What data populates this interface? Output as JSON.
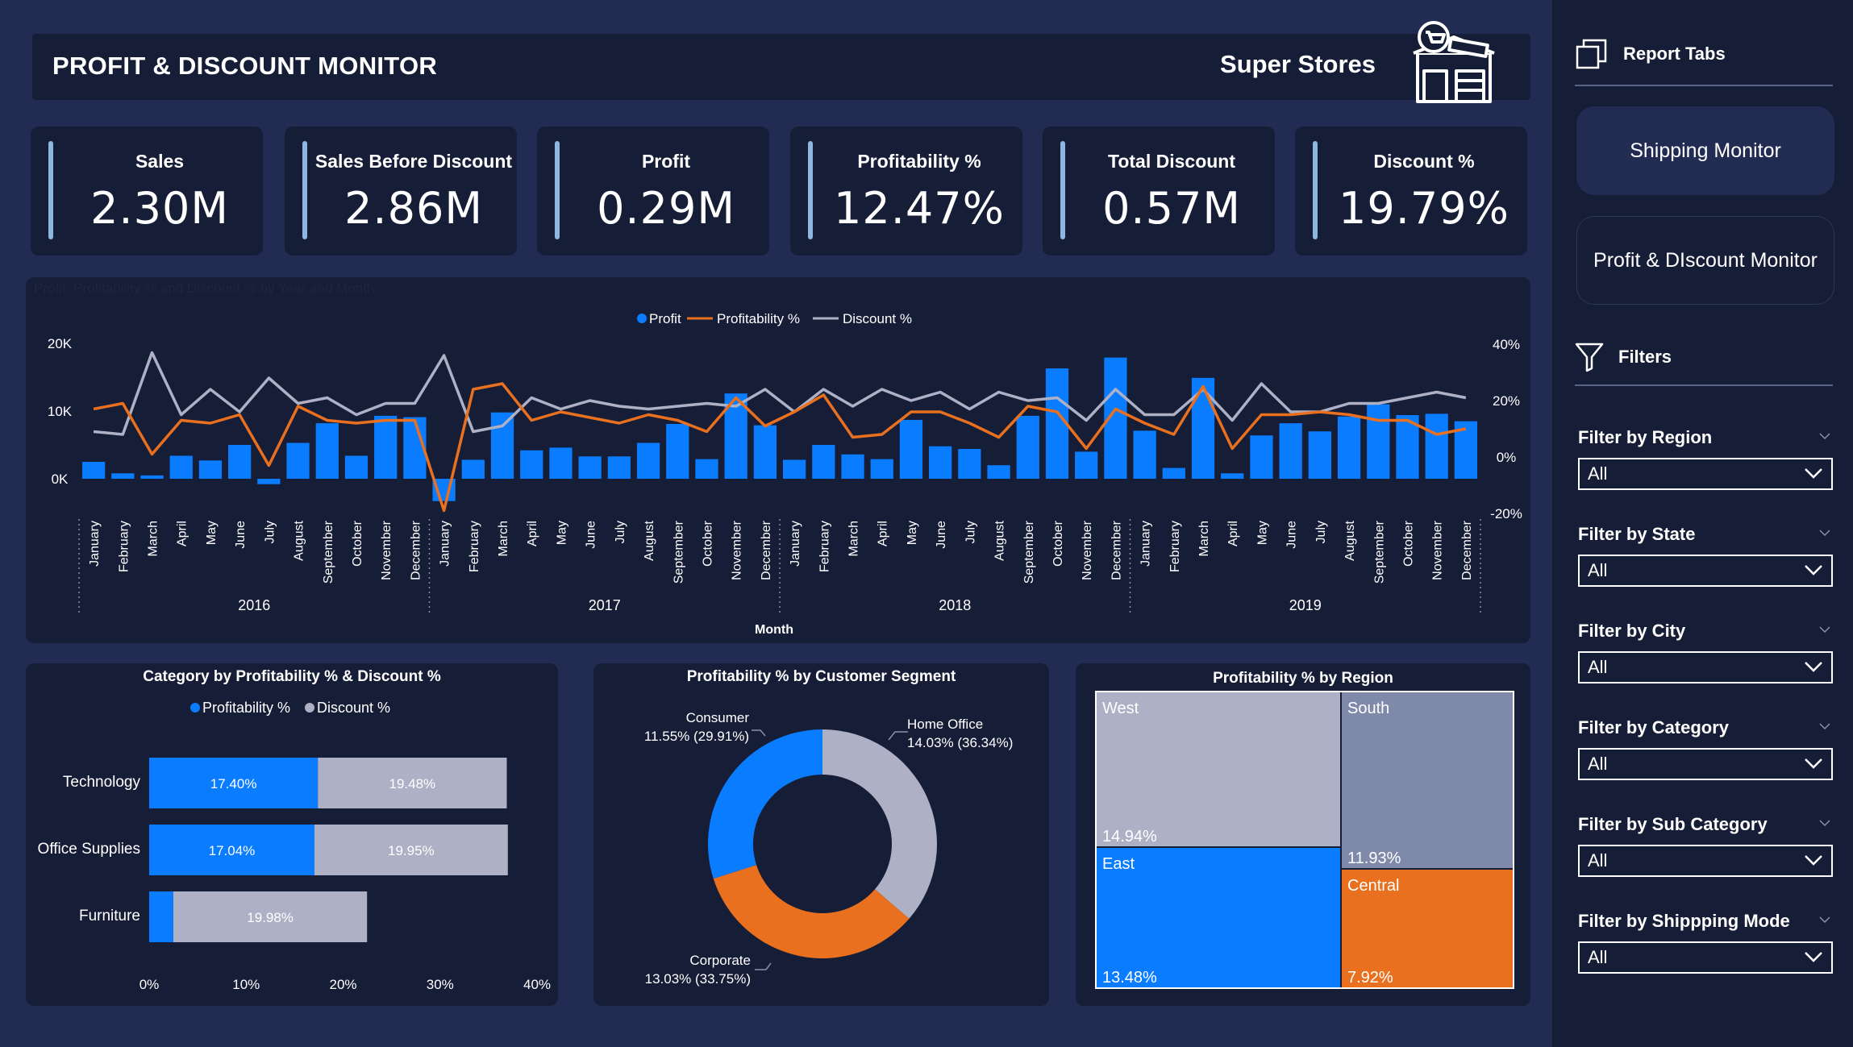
{
  "header": {
    "title": "PROFIT & DISCOUNT MONITOR",
    "brand": "Super Stores",
    "brand_icon": "store-icon"
  },
  "kpis": [
    {
      "label": "Sales",
      "value": "2.30M"
    },
    {
      "label": "Sales Before Discount",
      "value": "2.86M"
    },
    {
      "label": "Profit",
      "value": "0.29M"
    },
    {
      "label": "Profitability %",
      "value": "12.47%"
    },
    {
      "label": "Total Discount",
      "value": "0.57M"
    },
    {
      "label": "Discount %",
      "value": "19.79%"
    }
  ],
  "colors": {
    "profit": "#0a7cff",
    "profitability": "#e8701f",
    "discount": "#aeb0c6",
    "panel": "#161d36",
    "background": "#222c52"
  },
  "sidebar": {
    "report_tabs_label": "Report Tabs",
    "report_tabs_icon": "copy-icon",
    "nav": [
      {
        "label": "Shipping Monitor"
      },
      {
        "label": "Profit & DIscount Monitor"
      }
    ],
    "filters_label": "Filters",
    "filters_icon": "funnel-icon",
    "filters": [
      {
        "label": "Filter by Region",
        "value": "All"
      },
      {
        "label": "Filter by State",
        "value": "All"
      },
      {
        "label": "Filter by City",
        "value": "All"
      },
      {
        "label": "Filter by Category",
        "value": "All"
      },
      {
        "label": "Filter by Sub Category",
        "value": "All"
      },
      {
        "label": "Filter by Shippping Mode",
        "value": "All"
      }
    ]
  },
  "chart_data": [
    {
      "type": "bar",
      "title": "Profit, Profitability % and Discount % by Year and Month",
      "xlabel": "Month",
      "legend": [
        "Profit",
        "Profitability %",
        "Discount %"
      ],
      "legend_position": "top",
      "years": [
        "2016",
        "2017",
        "2018",
        "2019"
      ],
      "months": [
        "January",
        "February",
        "March",
        "April",
        "May",
        "June",
        "July",
        "August",
        "September",
        "October",
        "November",
        "December"
      ],
      "y_left_ticks": [
        "20K",
        "10K",
        "0K"
      ],
      "y_right_ticks": [
        "40%",
        "20%",
        "0%",
        "-20%"
      ],
      "y_left_range": [
        -4000,
        20000
      ],
      "y_right_range": [
        -20,
        40
      ],
      "series": [
        {
          "name": "Profit",
          "kind": "bar",
          "values": [
            2500,
            800,
            500,
            3400,
            2700,
            5000,
            -800,
            5300,
            8200,
            3400,
            9300,
            9100,
            -3300,
            2800,
            9800,
            4200,
            4600,
            3300,
            3300,
            5300,
            8100,
            2900,
            12600,
            7900,
            2800,
            5000,
            3600,
            2900,
            8700,
            4800,
            4400,
            2000,
            9300,
            16300,
            4000,
            17900,
            7100,
            1600,
            14900,
            800,
            6400,
            8200,
            7000,
            9200,
            11000,
            9400,
            9600,
            8500
          ]
        },
        {
          "name": "Profitability %",
          "kind": "line",
          "values": [
            17,
            19,
            1,
            13,
            12,
            15,
            -3,
            18,
            13,
            12,
            13,
            13,
            -19,
            24,
            26,
            13,
            16,
            14,
            12,
            15,
            13,
            9,
            21,
            11,
            16,
            22,
            7,
            8,
            16,
            16,
            12,
            7,
            18,
            16,
            3,
            17,
            12,
            8,
            25,
            3,
            15,
            15,
            16,
            15,
            13,
            13,
            8,
            10
          ]
        },
        {
          "name": "Discount %",
          "kind": "line",
          "values": [
            9,
            8,
            37,
            15,
            24,
            16,
            28,
            19,
            21,
            15,
            19,
            19,
            36,
            9,
            11,
            21,
            17,
            20,
            18,
            17,
            18,
            19,
            18,
            24,
            16,
            24,
            18,
            24,
            20,
            23,
            17,
            23,
            20,
            21,
            13,
            24,
            15,
            15,
            24,
            13,
            26,
            16,
            16,
            19,
            19,
            21,
            23,
            21
          ]
        }
      ]
    },
    {
      "type": "bar",
      "title": "Category by Profitability % & Discount %",
      "legend": [
        "Profitability %",
        "Discount %"
      ],
      "categories": [
        "Technology",
        "Office Supplies",
        "Furniture"
      ],
      "series": [
        {
          "name": "Profitability %",
          "values": [
            17.4,
            17.04,
            2.49
          ],
          "labels": [
            "17.40%",
            "17.04%",
            ""
          ]
        },
        {
          "name": "Discount %",
          "values": [
            19.48,
            19.95,
            19.98
          ],
          "labels": [
            "19.48%",
            "19.95%",
            "19.98%"
          ]
        }
      ],
      "x_ticks": [
        "0%",
        "10%",
        "20%",
        "30%",
        "40%"
      ],
      "xlim": [
        0,
        40
      ]
    },
    {
      "type": "pie",
      "title": "Profitability % by Customer Segment",
      "slices": [
        {
          "name": "Home Office",
          "label": "Home Office",
          "value_label": "14.03% (36.34%)",
          "share": 36.34
        },
        {
          "name": "Corporate",
          "label": "Corporate",
          "value_label": "13.03% (33.75%)",
          "share": 33.75
        },
        {
          "name": "Consumer",
          "label": "Consumer",
          "value_label": "11.55% (29.91%)",
          "share": 29.91
        }
      ]
    },
    {
      "type": "heatmap",
      "title": "Profitability % by Region",
      "cells": [
        {
          "name": "West",
          "value": "14.94%"
        },
        {
          "name": "South",
          "value": "11.93%"
        },
        {
          "name": "East",
          "value": "13.48%"
        },
        {
          "name": "Central",
          "value": "7.92%"
        }
      ]
    }
  ]
}
